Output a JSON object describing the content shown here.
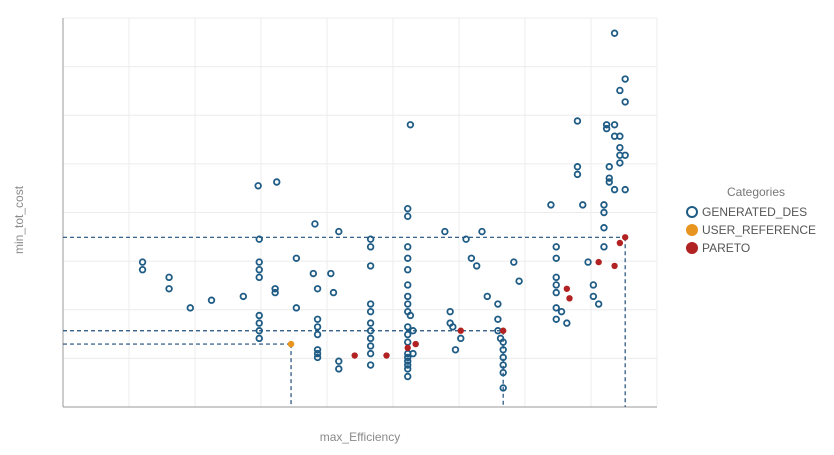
{
  "chart_data": {
    "type": "scatter",
    "title": "",
    "xlabel": "max_Efficiency",
    "ylabel": "min_tot_cost",
    "xlim": [
      0,
      1
    ],
    "ylim": [
      0,
      1
    ],
    "grid": true,
    "legend_placement": "right",
    "legend_title": "Categories",
    "series": [
      {
        "name": "GENERATED_DES",
        "color": "#1f5c85",
        "marker": "hollow-circle",
        "points": [
          [
            0.1,
            0.36
          ],
          [
            0.1,
            0.34
          ],
          [
            0.15,
            0.32
          ],
          [
            0.15,
            0.29
          ],
          [
            0.19,
            0.24
          ],
          [
            0.23,
            0.26
          ],
          [
            0.29,
            0.27
          ],
          [
            0.318,
            0.56
          ],
          [
            0.32,
            0.42
          ],
          [
            0.32,
            0.36
          ],
          [
            0.32,
            0.34
          ],
          [
            0.32,
            0.32
          ],
          [
            0.32,
            0.22
          ],
          [
            0.32,
            0.2
          ],
          [
            0.32,
            0.18
          ],
          [
            0.32,
            0.16
          ],
          [
            0.35,
            0.29
          ],
          [
            0.35,
            0.28
          ],
          [
            0.353,
            0.57
          ],
          [
            0.39,
            0.37
          ],
          [
            0.39,
            0.24
          ],
          [
            0.422,
            0.33
          ],
          [
            0.425,
            0.46
          ],
          [
            0.43,
            0.29
          ],
          [
            0.43,
            0.21
          ],
          [
            0.43,
            0.19
          ],
          [
            0.43,
            0.17
          ],
          [
            0.43,
            0.13
          ],
          [
            0.43,
            0.12
          ],
          [
            0.43,
            0.11
          ],
          [
            0.455,
            0.33
          ],
          [
            0.46,
            0.28
          ],
          [
            0.47,
            0.44
          ],
          [
            0.47,
            0.1
          ],
          [
            0.47,
            0.08
          ],
          [
            0.53,
            0.42
          ],
          [
            0.53,
            0.4
          ],
          [
            0.53,
            0.35
          ],
          [
            0.53,
            0.25
          ],
          [
            0.53,
            0.23
          ],
          [
            0.53,
            0.2
          ],
          [
            0.53,
            0.18
          ],
          [
            0.53,
            0.16
          ],
          [
            0.53,
            0.14
          ],
          [
            0.53,
            0.12
          ],
          [
            0.53,
            0.09
          ],
          [
            0.6,
            0.5
          ],
          [
            0.6,
            0.48
          ],
          [
            0.6,
            0.4
          ],
          [
            0.6,
            0.37
          ],
          [
            0.6,
            0.34
          ],
          [
            0.6,
            0.3
          ],
          [
            0.6,
            0.27
          ],
          [
            0.6,
            0.25
          ],
          [
            0.6,
            0.23
          ],
          [
            0.6,
            0.19
          ],
          [
            0.6,
            0.17
          ],
          [
            0.6,
            0.15
          ],
          [
            0.6,
            0.12
          ],
          [
            0.6,
            0.11
          ],
          [
            0.6,
            0.1
          ],
          [
            0.6,
            0.09
          ],
          [
            0.6,
            0.08
          ],
          [
            0.6,
            0.06
          ],
          [
            0.605,
            0.72
          ],
          [
            0.605,
            0.22
          ],
          [
            0.61,
            0.18
          ],
          [
            0.61,
            0.12
          ],
          [
            0.67,
            0.44
          ],
          [
            0.68,
            0.23
          ],
          [
            0.68,
            0.2
          ],
          [
            0.685,
            0.19
          ],
          [
            0.69,
            0.13
          ],
          [
            0.7,
            0.16
          ],
          [
            0.71,
            0.42
          ],
          [
            0.72,
            0.37
          ],
          [
            0.73,
            0.35
          ],
          [
            0.74,
            0.44
          ],
          [
            0.75,
            0.27
          ],
          [
            0.77,
            0.25
          ],
          [
            0.77,
            0.21
          ],
          [
            0.77,
            0.18
          ],
          [
            0.775,
            0.16
          ],
          [
            0.78,
            0.15
          ],
          [
            0.78,
            0.13
          ],
          [
            0.78,
            0.11
          ],
          [
            0.78,
            0.09
          ],
          [
            0.78,
            0.07
          ],
          [
            0.78,
            0.03
          ],
          [
            0.8,
            0.36
          ],
          [
            0.81,
            0.31
          ],
          [
            0.87,
            0.51
          ],
          [
            0.88,
            0.4
          ],
          [
            0.88,
            0.37
          ],
          [
            0.88,
            0.32
          ],
          [
            0.88,
            0.3
          ],
          [
            0.88,
            0.28
          ],
          [
            0.88,
            0.24
          ],
          [
            0.88,
            0.21
          ],
          [
            0.89,
            0.23
          ],
          [
            0.9,
            0.2
          ],
          [
            0.92,
            0.73
          ],
          [
            0.92,
            0.61
          ],
          [
            0.92,
            0.59
          ],
          [
            0.93,
            0.51
          ],
          [
            0.94,
            0.36
          ],
          [
            0.95,
            0.3
          ],
          [
            0.95,
            0.27
          ],
          [
            0.96,
            0.25
          ],
          [
            0.97,
            0.51
          ],
          [
            0.97,
            0.49
          ],
          [
            0.97,
            0.45
          ],
          [
            0.97,
            0.4
          ],
          [
            0.975,
            0.72
          ],
          [
            0.975,
            0.71
          ],
          [
            0.98,
            0.61
          ],
          [
            0.98,
            0.58
          ],
          [
            0.98,
            0.57
          ],
          [
            0.99,
            0.96
          ],
          [
            0.99,
            0.72
          ],
          [
            0.99,
            0.69
          ],
          [
            0.99,
            0.55
          ],
          [
            1.0,
            0.81
          ],
          [
            1.0,
            0.69
          ],
          [
            1.0,
            0.66
          ],
          [
            1.0,
            0.64
          ],
          [
            1.0,
            0.62
          ],
          [
            1.01,
            0.84
          ],
          [
            1.01,
            0.78
          ],
          [
            1.01,
            0.64
          ],
          [
            1.01,
            0.55
          ]
        ]
      },
      {
        "name": "USER_REFERENCE",
        "color": "#e8951f",
        "marker": "filled-circle",
        "points": [
          [
            0.38,
            0.145
          ]
        ]
      },
      {
        "name": "PARETO",
        "color": "#b22222",
        "marker": "filled-circle",
        "points": [
          [
            0.5,
            0.115
          ],
          [
            0.56,
            0.115
          ],
          [
            0.6,
            0.135
          ],
          [
            0.615,
            0.145
          ],
          [
            0.7,
            0.18
          ],
          [
            0.78,
            0.18
          ],
          [
            0.9,
            0.29
          ],
          [
            0.905,
            0.265
          ],
          [
            0.96,
            0.36
          ],
          [
            0.99,
            0.35
          ],
          [
            1.0,
            0.41
          ],
          [
            1.01,
            0.425
          ]
        ]
      }
    ],
    "reference_lines": [
      {
        "x": 0.38,
        "y": 0.145
      },
      {
        "x": 0.78,
        "y": 0.18
      },
      {
        "x": 1.01,
        "y": 0.425
      }
    ]
  }
}
